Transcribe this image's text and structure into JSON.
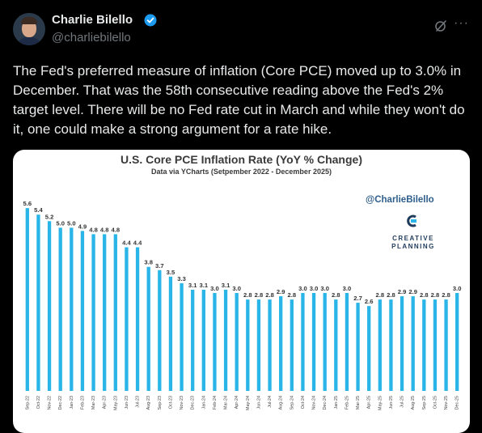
{
  "author": {
    "name": "Charlie Bilello",
    "handle": "@charliebilello",
    "verified": true
  },
  "icons": {
    "avatar": "profile-photo",
    "verified": "verified-badge-icon",
    "grok": "grok-icon",
    "more": "more-options-icon"
  },
  "more_label": "···",
  "tweet_text": "The Fed's preferred measure of inflation (Core PCE) moved up to 3.0% in December. That was the 58th consecutive reading above the Fed's 2% target level. There will be no Fed rate cut in March and while they won't do it, one could make a strong argument for a rate hike.",
  "chart_image": {
    "watermark": "@CharlieBilello",
    "logo_line1": "CREATIVE",
    "logo_line2": "PLANNING"
  },
  "colors": {
    "bar": "#29b5e8",
    "background": "#000000",
    "text": "#e7e9ea",
    "muted": "#71767b",
    "verified": "#1d9bf0"
  },
  "chart_data": {
    "type": "bar",
    "title": "U.S. Core PCE Inflation Rate (YoY % Change)",
    "subtitle": "Data via YCharts (Setpember 2022 - December 2025)",
    "categories": [
      "Sep-22",
      "Oct-22",
      "Nov-22",
      "Dec-22",
      "Jan-23",
      "Feb-23",
      "Mar-23",
      "Apr-23",
      "May-23",
      "Jun-23",
      "Jul-23",
      "Aug-23",
      "Sep-23",
      "Oct-23",
      "Nov-23",
      "Dec-23",
      "Jan-24",
      "Feb-24",
      "Mar-24",
      "Apr-24",
      "May-24",
      "Jun-24",
      "Jul-24",
      "Aug-24",
      "Sep-24",
      "Oct-24",
      "Nov-24",
      "Dec-24",
      "Jan-25",
      "Feb-25",
      "Mar-25",
      "Apr-25",
      "May-25",
      "Jun-25",
      "Jul-25",
      "Aug-25",
      "Sep-25",
      "Oct-25",
      "Nov-25",
      "Dec-25"
    ],
    "values": [
      5.6,
      5.4,
      5.2,
      5.0,
      5.0,
      4.9,
      4.8,
      4.8,
      4.8,
      4.4,
      4.4,
      3.8,
      3.7,
      3.5,
      3.3,
      3.1,
      3.1,
      3.0,
      3.1,
      3.0,
      2.8,
      2.8,
      2.8,
      2.9,
      2.8,
      3.0,
      3.0,
      3.0,
      2.8,
      3.0,
      2.7,
      2.6,
      2.8,
      2.8,
      2.9,
      2.9,
      2.8,
      2.8,
      2.8,
      3.0
    ],
    "labels": [
      "5.6",
      "5.4",
      "5.2",
      "5.0",
      "5.0",
      "4.9",
      "4.8",
      "4.8",
      "4.8",
      "4.4",
      "4.4",
      "3.8",
      "3.7",
      "3.5",
      "3.3",
      "3.1",
      "3.1",
      "3.0",
      "3.1",
      "3.0",
      "2.8",
      "2.8",
      "2.8",
      "2.9",
      "2.8",
      "3.0",
      "3.0",
      "3.0",
      "2.8",
      "3.0",
      "2.7",
      "2.6",
      "2.8",
      "2.8",
      "2.9",
      "2.9",
      "2.8",
      "2.8",
      "2.8",
      "3.0"
    ],
    "ylim": [
      0,
      6
    ],
    "grid": false,
    "legend": "none"
  }
}
